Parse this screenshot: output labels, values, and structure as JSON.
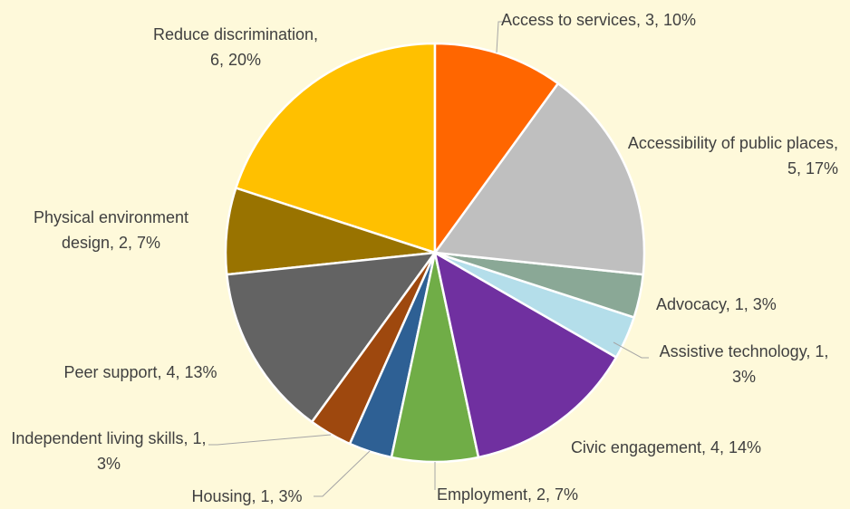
{
  "chart_data": {
    "type": "pie",
    "values": [
      3,
      5,
      1,
      1,
      4,
      2,
      1,
      1,
      4,
      2,
      6
    ],
    "value_labels": [
      "Access to services, 3, 10%",
      "Accessibility of public places, 5, 17%",
      "Advocacy, 1, 3%",
      "Assistive technology, 1, 3%",
      "Civic engagement, 4, 14%",
      "Employment, 2, 7%",
      "Housing, 1, 3%",
      "Independent living skills, 1, 3%",
      "Peer support, 4, 13%",
      "Physical environment design, 2, 7%",
      "Reduce discrimination, 6, 20%"
    ],
    "colors": [
      "#FF6600",
      "#BFBFBF",
      "#8AA896",
      "#B4DEEA",
      "#7030A0",
      "#70AD47",
      "#2E6094",
      "#9E480E",
      "#636363",
      "#997300",
      "#FFC000"
    ]
  }
}
